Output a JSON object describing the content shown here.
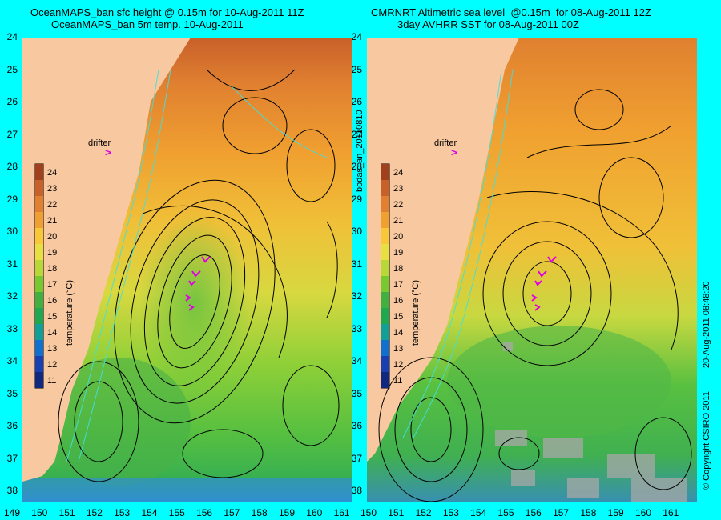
{
  "left_panel": {
    "title_line1": "OceanMAPS_ban sfc height @ 0.15m for 10-Aug-2011 11Z",
    "title_line2": "OceanMAPS_ban 5m temp. 10-Aug-2011",
    "drifter_label": "drifter",
    "colorbar_title": "temperature (°C)"
  },
  "right_panel": {
    "title_line1": "CMRNRT Altimetric sea level  @0.15m  for 08-Aug-2011 12Z",
    "title_line2": "3day AVHRR SST for 08-Aug-2011 00Z",
    "drifter_label": "drifter",
    "colorbar_title": "temperature (°C)"
  },
  "side_labels": {
    "run_id": "bodas_an_20110810",
    "timestamp": "20-Aug-2011 08:48:20",
    "copyright": "© Copyright CSIRO 2011"
  },
  "axes": {
    "lat_ticks": [
      "24",
      "25",
      "26",
      "27",
      "28",
      "29",
      "30",
      "31",
      "32",
      "33",
      "34",
      "35",
      "36",
      "37",
      "38"
    ],
    "lon_ticks_left": [
      "149",
      "150",
      "151",
      "152",
      "153",
      "154",
      "155",
      "156",
      "157",
      "158",
      "159",
      "160",
      "161"
    ],
    "lon_ticks_right": [
      "150",
      "151",
      "152",
      "153",
      "154",
      "155",
      "156",
      "157",
      "158",
      "159",
      "160",
      "161"
    ]
  },
  "colorbar": {
    "values": [
      "24",
      "23",
      "22",
      "21",
      "20",
      "19",
      "18",
      "17",
      "16",
      "15",
      "14",
      "13",
      "12",
      "11"
    ],
    "colors": [
      "#a0401c",
      "#c8602a",
      "#e08030",
      "#f0a030",
      "#f8c838",
      "#e8e040",
      "#b8d838",
      "#78c830",
      "#40b040",
      "#20a850",
      "#10a098",
      "#1070d0",
      "#1840b0",
      "#102880"
    ]
  },
  "colors": {
    "background": "#00ffff",
    "land": "#f8c8a0",
    "drifter": "#e000e0"
  }
}
